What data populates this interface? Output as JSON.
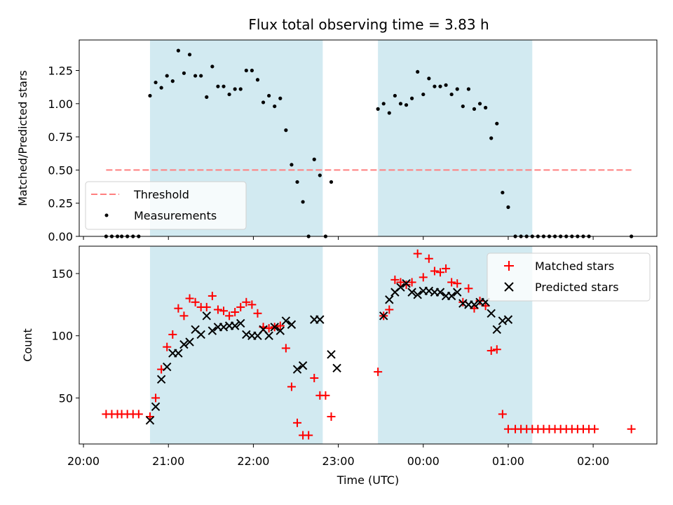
{
  "chart_data": [
    {
      "type": "scatter",
      "title": "Flux total observing time = 3.83 h",
      "xlabel": "",
      "ylabel": "Matched/Predicted stars",
      "xlim": [
        "20:00",
        "02:45"
      ],
      "ylim": [
        0,
        1.48
      ],
      "yticks": [
        0.0,
        0.25,
        0.5,
        0.75,
        1.0,
        1.25
      ],
      "ytick_labels": [
        "0.00",
        "0.25",
        "0.50",
        "0.75",
        "1.00",
        "1.25"
      ],
      "xticks": [
        "20:00",
        "21:00",
        "22:00",
        "23:00",
        "00:00",
        "01:00",
        "02:00"
      ],
      "xtick_labels_shown": false,
      "shaded_intervals": [
        [
          "20:47",
          "22:49"
        ],
        [
          "23:28",
          "01:17"
        ]
      ],
      "shade_color": "#add8e6",
      "legend_position": "lower-left",
      "threshold": {
        "name": "Threshold",
        "value": 0.5,
        "x_range": [
          "20:16",
          "02:27"
        ],
        "color": "#ff7f7f"
      },
      "series": [
        {
          "name": "Measurements",
          "color": "#000000",
          "points": [
            [
              "20:16",
              0.0
            ],
            [
              "20:20",
              0.0
            ],
            [
              "20:24",
              0.0
            ],
            [
              "20:27",
              0.0
            ],
            [
              "20:31",
              0.0
            ],
            [
              "20:35",
              0.0
            ],
            [
              "20:39",
              0.0
            ],
            [
              "20:47",
              1.06
            ],
            [
              "20:51",
              1.16
            ],
            [
              "20:55",
              1.12
            ],
            [
              "20:59",
              1.21
            ],
            [
              "21:03",
              1.17
            ],
            [
              "21:07",
              1.4
            ],
            [
              "21:11",
              1.23
            ],
            [
              "21:15",
              1.37
            ],
            [
              "21:19",
              1.21
            ],
            [
              "21:23",
              1.21
            ],
            [
              "21:27",
              1.05
            ],
            [
              "21:31",
              1.28
            ],
            [
              "21:35",
              1.13
            ],
            [
              "21:39",
              1.13
            ],
            [
              "21:43",
              1.07
            ],
            [
              "21:47",
              1.11
            ],
            [
              "21:51",
              1.11
            ],
            [
              "21:55",
              1.25
            ],
            [
              "21:59",
              1.25
            ],
            [
              "22:03",
              1.18
            ],
            [
              "22:07",
              1.01
            ],
            [
              "22:11",
              1.06
            ],
            [
              "22:15",
              0.98
            ],
            [
              "22:19",
              1.04
            ],
            [
              "22:23",
              0.8
            ],
            [
              "22:27",
              0.54
            ],
            [
              "22:31",
              0.41
            ],
            [
              "22:35",
              0.26
            ],
            [
              "22:39",
              0.0
            ],
            [
              "22:43",
              0.58
            ],
            [
              "22:47",
              0.46
            ],
            [
              "22:51",
              0.0
            ],
            [
              "22:55",
              0.41
            ],
            [
              "23:28",
              0.96
            ],
            [
              "23:32",
              1.0
            ],
            [
              "23:36",
              0.93
            ],
            [
              "23:40",
              1.06
            ],
            [
              "23:44",
              1.0
            ],
            [
              "23:48",
              0.99
            ],
            [
              "23:52",
              1.04
            ],
            [
              "23:56",
              1.24
            ],
            [
              "00:00",
              1.07
            ],
            [
              "00:04",
              1.19
            ],
            [
              "00:08",
              1.13
            ],
            [
              "00:12",
              1.13
            ],
            [
              "00:16",
              1.14
            ],
            [
              "00:20",
              1.07
            ],
            [
              "00:24",
              1.11
            ],
            [
              "00:28",
              0.98
            ],
            [
              "00:32",
              1.11
            ],
            [
              "00:36",
              0.96
            ],
            [
              "00:40",
              1.0
            ],
            [
              "00:44",
              0.97
            ],
            [
              "00:48",
              0.74
            ],
            [
              "00:52",
              0.85
            ],
            [
              "00:56",
              0.33
            ],
            [
              "01:00",
              0.22
            ],
            [
              "01:05",
              0.0
            ],
            [
              "01:09",
              0.0
            ],
            [
              "01:13",
              0.0
            ],
            [
              "01:17",
              0.0
            ],
            [
              "01:21",
              0.0
            ],
            [
              "01:25",
              0.0
            ],
            [
              "01:29",
              0.0
            ],
            [
              "01:33",
              0.0
            ],
            [
              "01:37",
              0.0
            ],
            [
              "01:41",
              0.0
            ],
            [
              "01:45",
              0.0
            ],
            [
              "01:49",
              0.0
            ],
            [
              "01:53",
              0.0
            ],
            [
              "01:57",
              0.0
            ],
            [
              "02:27",
              0.0
            ]
          ]
        }
      ]
    },
    {
      "type": "scatter",
      "title": "",
      "xlabel": "Time (UTC)",
      "ylabel": "Count",
      "xlim": [
        "20:00",
        "02:45"
      ],
      "ylim": [
        13,
        172
      ],
      "yticks": [
        50,
        100,
        150
      ],
      "ytick_labels": [
        "50",
        "100",
        "150"
      ],
      "xticks": [
        "20:00",
        "21:00",
        "22:00",
        "23:00",
        "00:00",
        "01:00",
        "02:00"
      ],
      "xtick_labels": [
        "20:00",
        "21:00",
        "22:00",
        "23:00",
        "00:00",
        "01:00",
        "02:00"
      ],
      "shaded_intervals": [
        [
          "20:47",
          "22:49"
        ],
        [
          "23:28",
          "01:17"
        ]
      ],
      "shade_color": "#add8e6",
      "legend_position": "upper-right",
      "series": [
        {
          "name": "Matched stars",
          "marker": "plus",
          "color": "#ff0000",
          "points": [
            [
              "20:16",
              37
            ],
            [
              "20:20",
              37
            ],
            [
              "20:24",
              37
            ],
            [
              "20:27",
              37
            ],
            [
              "20:31",
              37
            ],
            [
              "20:35",
              37
            ],
            [
              "20:39",
              37
            ],
            [
              "20:47",
              35
            ],
            [
              "20:51",
              50
            ],
            [
              "20:55",
              73
            ],
            [
              "20:59",
              91
            ],
            [
              "21:03",
              101
            ],
            [
              "21:07",
              122
            ],
            [
              "21:11",
              116
            ],
            [
              "21:15",
              130
            ],
            [
              "21:19",
              127
            ],
            [
              "21:23",
              123
            ],
            [
              "21:27",
              123
            ],
            [
              "21:31",
              132
            ],
            [
              "21:35",
              121
            ],
            [
              "21:39",
              120
            ],
            [
              "21:43",
              116
            ],
            [
              "21:47",
              119
            ],
            [
              "21:51",
              123
            ],
            [
              "21:55",
              127
            ],
            [
              "21:59",
              125
            ],
            [
              "22:03",
              118
            ],
            [
              "22:07",
              107
            ],
            [
              "22:11",
              106
            ],
            [
              "22:15",
              107
            ],
            [
              "22:19",
              108
            ],
            [
              "22:23",
              90
            ],
            [
              "22:27",
              59
            ],
            [
              "22:31",
              30
            ],
            [
              "22:35",
              20
            ],
            [
              "22:39",
              20
            ],
            [
              "22:43",
              66
            ],
            [
              "22:47",
              52
            ],
            [
              "22:51",
              52
            ],
            [
              "22:55",
              35
            ],
            [
              "23:28",
              71
            ],
            [
              "23:32",
              116
            ],
            [
              "23:36",
              121
            ],
            [
              "23:40",
              145
            ],
            [
              "23:44",
              143
            ],
            [
              "23:48",
              141
            ],
            [
              "23:52",
              143
            ],
            [
              "23:56",
              166
            ],
            [
              "00:00",
              147
            ],
            [
              "00:04",
              162
            ],
            [
              "00:08",
              152
            ],
            [
              "00:12",
              151
            ],
            [
              "00:16",
              154
            ],
            [
              "00:20",
              143
            ],
            [
              "00:24",
              142
            ],
            [
              "00:28",
              127
            ],
            [
              "00:32",
              138
            ],
            [
              "00:36",
              122
            ],
            [
              "00:40",
              128
            ],
            [
              "00:44",
              124
            ],
            [
              "00:48",
              88
            ],
            [
              "00:52",
              89
            ],
            [
              "00:56",
              37
            ],
            [
              "01:00",
              25
            ],
            [
              "01:05",
              25
            ],
            [
              "01:09",
              25
            ],
            [
              "01:13",
              25
            ],
            [
              "01:17",
              25
            ],
            [
              "01:21",
              25
            ],
            [
              "01:25",
              25
            ],
            [
              "01:29",
              25
            ],
            [
              "01:33",
              25
            ],
            [
              "01:37",
              25
            ],
            [
              "01:41",
              25
            ],
            [
              "01:45",
              25
            ],
            [
              "01:49",
              25
            ],
            [
              "01:53",
              25
            ],
            [
              "01:57",
              25
            ],
            [
              "02:01",
              25
            ],
            [
              "02:27",
              25
            ]
          ]
        },
        {
          "name": "Predicted stars",
          "marker": "x",
          "color": "#000000",
          "points": [
            [
              "20:47",
              32
            ],
            [
              "20:51",
              43
            ],
            [
              "20:55",
              65
            ],
            [
              "20:59",
              75
            ],
            [
              "21:03",
              86
            ],
            [
              "21:07",
              86
            ],
            [
              "21:11",
              93
            ],
            [
              "21:15",
              95
            ],
            [
              "21:19",
              105
            ],
            [
              "21:23",
              101
            ],
            [
              "21:27",
              116
            ],
            [
              "21:31",
              104
            ],
            [
              "21:35",
              107
            ],
            [
              "21:39",
              107
            ],
            [
              "21:43",
              108
            ],
            [
              "21:47",
              108
            ],
            [
              "21:51",
              110
            ],
            [
              "21:55",
              101
            ],
            [
              "21:59",
              100
            ],
            [
              "22:03",
              100
            ],
            [
              "22:07",
              105
            ],
            [
              "22:11",
              100
            ],
            [
              "22:15",
              107
            ],
            [
              "22:19",
              104
            ],
            [
              "22:23",
              112
            ],
            [
              "22:27",
              109
            ],
            [
              "22:31",
              73
            ],
            [
              "22:35",
              76
            ],
            [
              "22:43",
              113
            ],
            [
              "22:47",
              113
            ],
            [
              "22:55",
              85
            ],
            [
              "22:59",
              74
            ],
            [
              "23:32",
              116
            ],
            [
              "23:36",
              129
            ],
            [
              "23:40",
              135
            ],
            [
              "23:44",
              139
            ],
            [
              "23:48",
              142
            ],
            [
              "23:52",
              135
            ],
            [
              "23:56",
              133
            ],
            [
              "00:00",
              136
            ],
            [
              "00:04",
              136
            ],
            [
              "00:08",
              135
            ],
            [
              "00:12",
              135
            ],
            [
              "00:16",
              132
            ],
            [
              "00:20",
              132
            ],
            [
              "00:24",
              135
            ],
            [
              "00:28",
              126
            ],
            [
              "00:32",
              125
            ],
            [
              "00:36",
              125
            ],
            [
              "00:40",
              127
            ],
            [
              "00:44",
              127
            ],
            [
              "00:48",
              118
            ],
            [
              "00:52",
              105
            ],
            [
              "00:56",
              112
            ],
            [
              "01:00",
              113
            ]
          ]
        }
      ]
    }
  ]
}
